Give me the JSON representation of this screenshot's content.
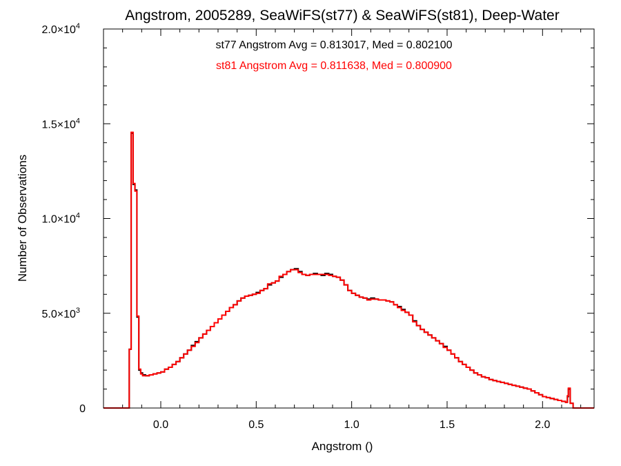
{
  "chart_data": {
    "type": "line",
    "step": true,
    "title": "Angstrom, 2005289, SeaWiFS(st77) & SeaWiFS(st81), Deep-Water",
    "xlabel": "Angstrom ()",
    "ylabel": "Number of Observations",
    "xlim": [
      -0.3,
      2.27
    ],
    "ylim": [
      0,
      20000
    ],
    "grid": false,
    "x_ticks": [
      {
        "value": 0.0,
        "label": "0.0"
      },
      {
        "value": 0.5,
        "label": "0.5"
      },
      {
        "value": 1.0,
        "label": "1.0"
      },
      {
        "value": 1.5,
        "label": "1.5"
      },
      {
        "value": 2.0,
        "label": "2.0"
      }
    ],
    "y_ticks": [
      {
        "value": 0,
        "mantissa": "0",
        "exponent": ""
      },
      {
        "value": 5000,
        "mantissa": "5.0×10",
        "exponent": "3"
      },
      {
        "value": 10000,
        "mantissa": "1.0×10",
        "exponent": "4"
      },
      {
        "value": 15000,
        "mantissa": "1.5×10",
        "exponent": "4"
      },
      {
        "value": 20000,
        "mantissa": "2.0×10",
        "exponent": "4"
      }
    ],
    "annotations": [
      {
        "text": "st77 Angstrom Avg = 0.813017, Med = 0.802100",
        "color": "#000000"
      },
      {
        "text": "st81 Angstrom Avg = 0.811638, Med = 0.800900",
        "color": "#ff0000"
      }
    ],
    "series": [
      {
        "color": "#000000",
        "x": [
          -0.3,
          -0.17,
          -0.165,
          -0.155,
          -0.145,
          -0.135,
          -0.125,
          -0.115,
          -0.105,
          -0.095,
          -0.08,
          -0.06,
          -0.04,
          -0.02,
          0.0,
          0.02,
          0.04,
          0.06,
          0.08,
          0.1,
          0.12,
          0.14,
          0.16,
          0.18,
          0.2,
          0.22,
          0.24,
          0.26,
          0.28,
          0.3,
          0.32,
          0.34,
          0.36,
          0.38,
          0.4,
          0.42,
          0.44,
          0.46,
          0.48,
          0.5,
          0.52,
          0.54,
          0.56,
          0.58,
          0.6,
          0.62,
          0.64,
          0.66,
          0.68,
          0.7,
          0.72,
          0.74,
          0.76,
          0.78,
          0.8,
          0.82,
          0.84,
          0.86,
          0.88,
          0.9,
          0.92,
          0.94,
          0.96,
          0.98,
          1.0,
          1.02,
          1.04,
          1.06,
          1.08,
          1.1,
          1.12,
          1.14,
          1.16,
          1.18,
          1.2,
          1.22,
          1.24,
          1.26,
          1.28,
          1.3,
          1.32,
          1.34,
          1.36,
          1.38,
          1.4,
          1.42,
          1.44,
          1.46,
          1.48,
          1.5,
          1.52,
          1.54,
          1.56,
          1.58,
          1.6,
          1.62,
          1.64,
          1.66,
          1.68,
          1.7,
          1.72,
          1.74,
          1.76,
          1.78,
          1.8,
          1.82,
          1.84,
          1.86,
          1.88,
          1.9,
          1.92,
          1.94,
          1.96,
          1.98,
          2.0,
          2.02,
          2.04,
          2.06,
          2.08,
          2.1,
          2.12,
          2.13,
          2.135,
          2.145,
          2.16,
          2.27
        ],
        "y": [
          0,
          0,
          3100,
          14500,
          11800,
          11500,
          4800,
          2000,
          1850,
          1750,
          1700,
          1750,
          1800,
          1850,
          1900,
          2050,
          2150,
          2300,
          2450,
          2650,
          2850,
          3050,
          3300,
          3500,
          3700,
          3900,
          4100,
          4300,
          4500,
          4700,
          4900,
          5100,
          5300,
          5450,
          5650,
          5800,
          5900,
          5950,
          6000,
          6100,
          6200,
          6300,
          6500,
          6600,
          6700,
          6900,
          7050,
          7200,
          7300,
          7350,
          7200,
          7050,
          7000,
          7050,
          7100,
          7050,
          7000,
          7100,
          7050,
          6950,
          6900,
          6750,
          6500,
          6200,
          6050,
          5950,
          5850,
          5800,
          5750,
          5800,
          5750,
          5700,
          5700,
          5650,
          5600,
          5450,
          5350,
          5200,
          5050,
          4900,
          4600,
          4350,
          4150,
          4000,
          3850,
          3700,
          3550,
          3400,
          3250,
          3050,
          2850,
          2650,
          2450,
          2300,
          2150,
          2000,
          1850,
          1750,
          1650,
          1600,
          1500,
          1450,
          1400,
          1350,
          1300,
          1250,
          1200,
          1150,
          1100,
          1050,
          1000,
          900,
          800,
          700,
          600,
          550,
          500,
          450,
          400,
          350,
          300,
          600,
          1000,
          250,
          0,
          0
        ]
      },
      {
        "color": "#ff0000",
        "x": [
          -0.3,
          -0.17,
          -0.165,
          -0.155,
          -0.145,
          -0.135,
          -0.125,
          -0.115,
          -0.105,
          -0.095,
          -0.08,
          -0.06,
          -0.04,
          -0.02,
          0.0,
          0.02,
          0.04,
          0.06,
          0.08,
          0.1,
          0.12,
          0.14,
          0.16,
          0.18,
          0.2,
          0.22,
          0.24,
          0.26,
          0.28,
          0.3,
          0.32,
          0.34,
          0.36,
          0.38,
          0.4,
          0.42,
          0.44,
          0.46,
          0.48,
          0.5,
          0.52,
          0.54,
          0.56,
          0.58,
          0.6,
          0.62,
          0.64,
          0.66,
          0.68,
          0.7,
          0.72,
          0.74,
          0.76,
          0.78,
          0.8,
          0.82,
          0.84,
          0.86,
          0.88,
          0.9,
          0.92,
          0.94,
          0.96,
          0.98,
          1.0,
          1.02,
          1.04,
          1.06,
          1.08,
          1.1,
          1.12,
          1.14,
          1.16,
          1.18,
          1.2,
          1.22,
          1.24,
          1.26,
          1.28,
          1.3,
          1.32,
          1.34,
          1.36,
          1.38,
          1.4,
          1.42,
          1.44,
          1.46,
          1.48,
          1.5,
          1.52,
          1.54,
          1.56,
          1.58,
          1.6,
          1.62,
          1.64,
          1.66,
          1.68,
          1.7,
          1.72,
          1.74,
          1.76,
          1.78,
          1.8,
          1.82,
          1.84,
          1.86,
          1.88,
          1.9,
          1.92,
          1.94,
          1.96,
          1.98,
          2.0,
          2.02,
          2.04,
          2.06,
          2.08,
          2.1,
          2.12,
          2.13,
          2.135,
          2.145,
          2.16,
          2.27
        ],
        "y": [
          0,
          0,
          3100,
          14550,
          11850,
          11450,
          4850,
          2050,
          1800,
          1700,
          1700,
          1750,
          1800,
          1850,
          1900,
          2050,
          2150,
          2300,
          2450,
          2650,
          2850,
          3050,
          3250,
          3450,
          3700,
          3900,
          4100,
          4300,
          4500,
          4700,
          4900,
          5100,
          5300,
          5450,
          5650,
          5800,
          5900,
          5950,
          6000,
          6050,
          6200,
          6300,
          6550,
          6600,
          6700,
          6950,
          7050,
          7200,
          7300,
          7300,
          7150,
          7050,
          7000,
          7050,
          7050,
          7050,
          7050,
          7050,
          7000,
          6950,
          6900,
          6750,
          6500,
          6200,
          6050,
          5950,
          5850,
          5800,
          5700,
          5750,
          5750,
          5700,
          5700,
          5650,
          5600,
          5450,
          5300,
          5150,
          5050,
          4900,
          4550,
          4350,
          4150,
          4000,
          3850,
          3700,
          3550,
          3400,
          3200,
          3050,
          2850,
          2650,
          2450,
          2300,
          2150,
          2000,
          1850,
          1750,
          1650,
          1600,
          1500,
          1450,
          1400,
          1350,
          1300,
          1250,
          1200,
          1150,
          1100,
          1050,
          1000,
          900,
          800,
          700,
          600,
          550,
          500,
          450,
          400,
          350,
          300,
          650,
          1050,
          250,
          0,
          0
        ]
      }
    ]
  }
}
